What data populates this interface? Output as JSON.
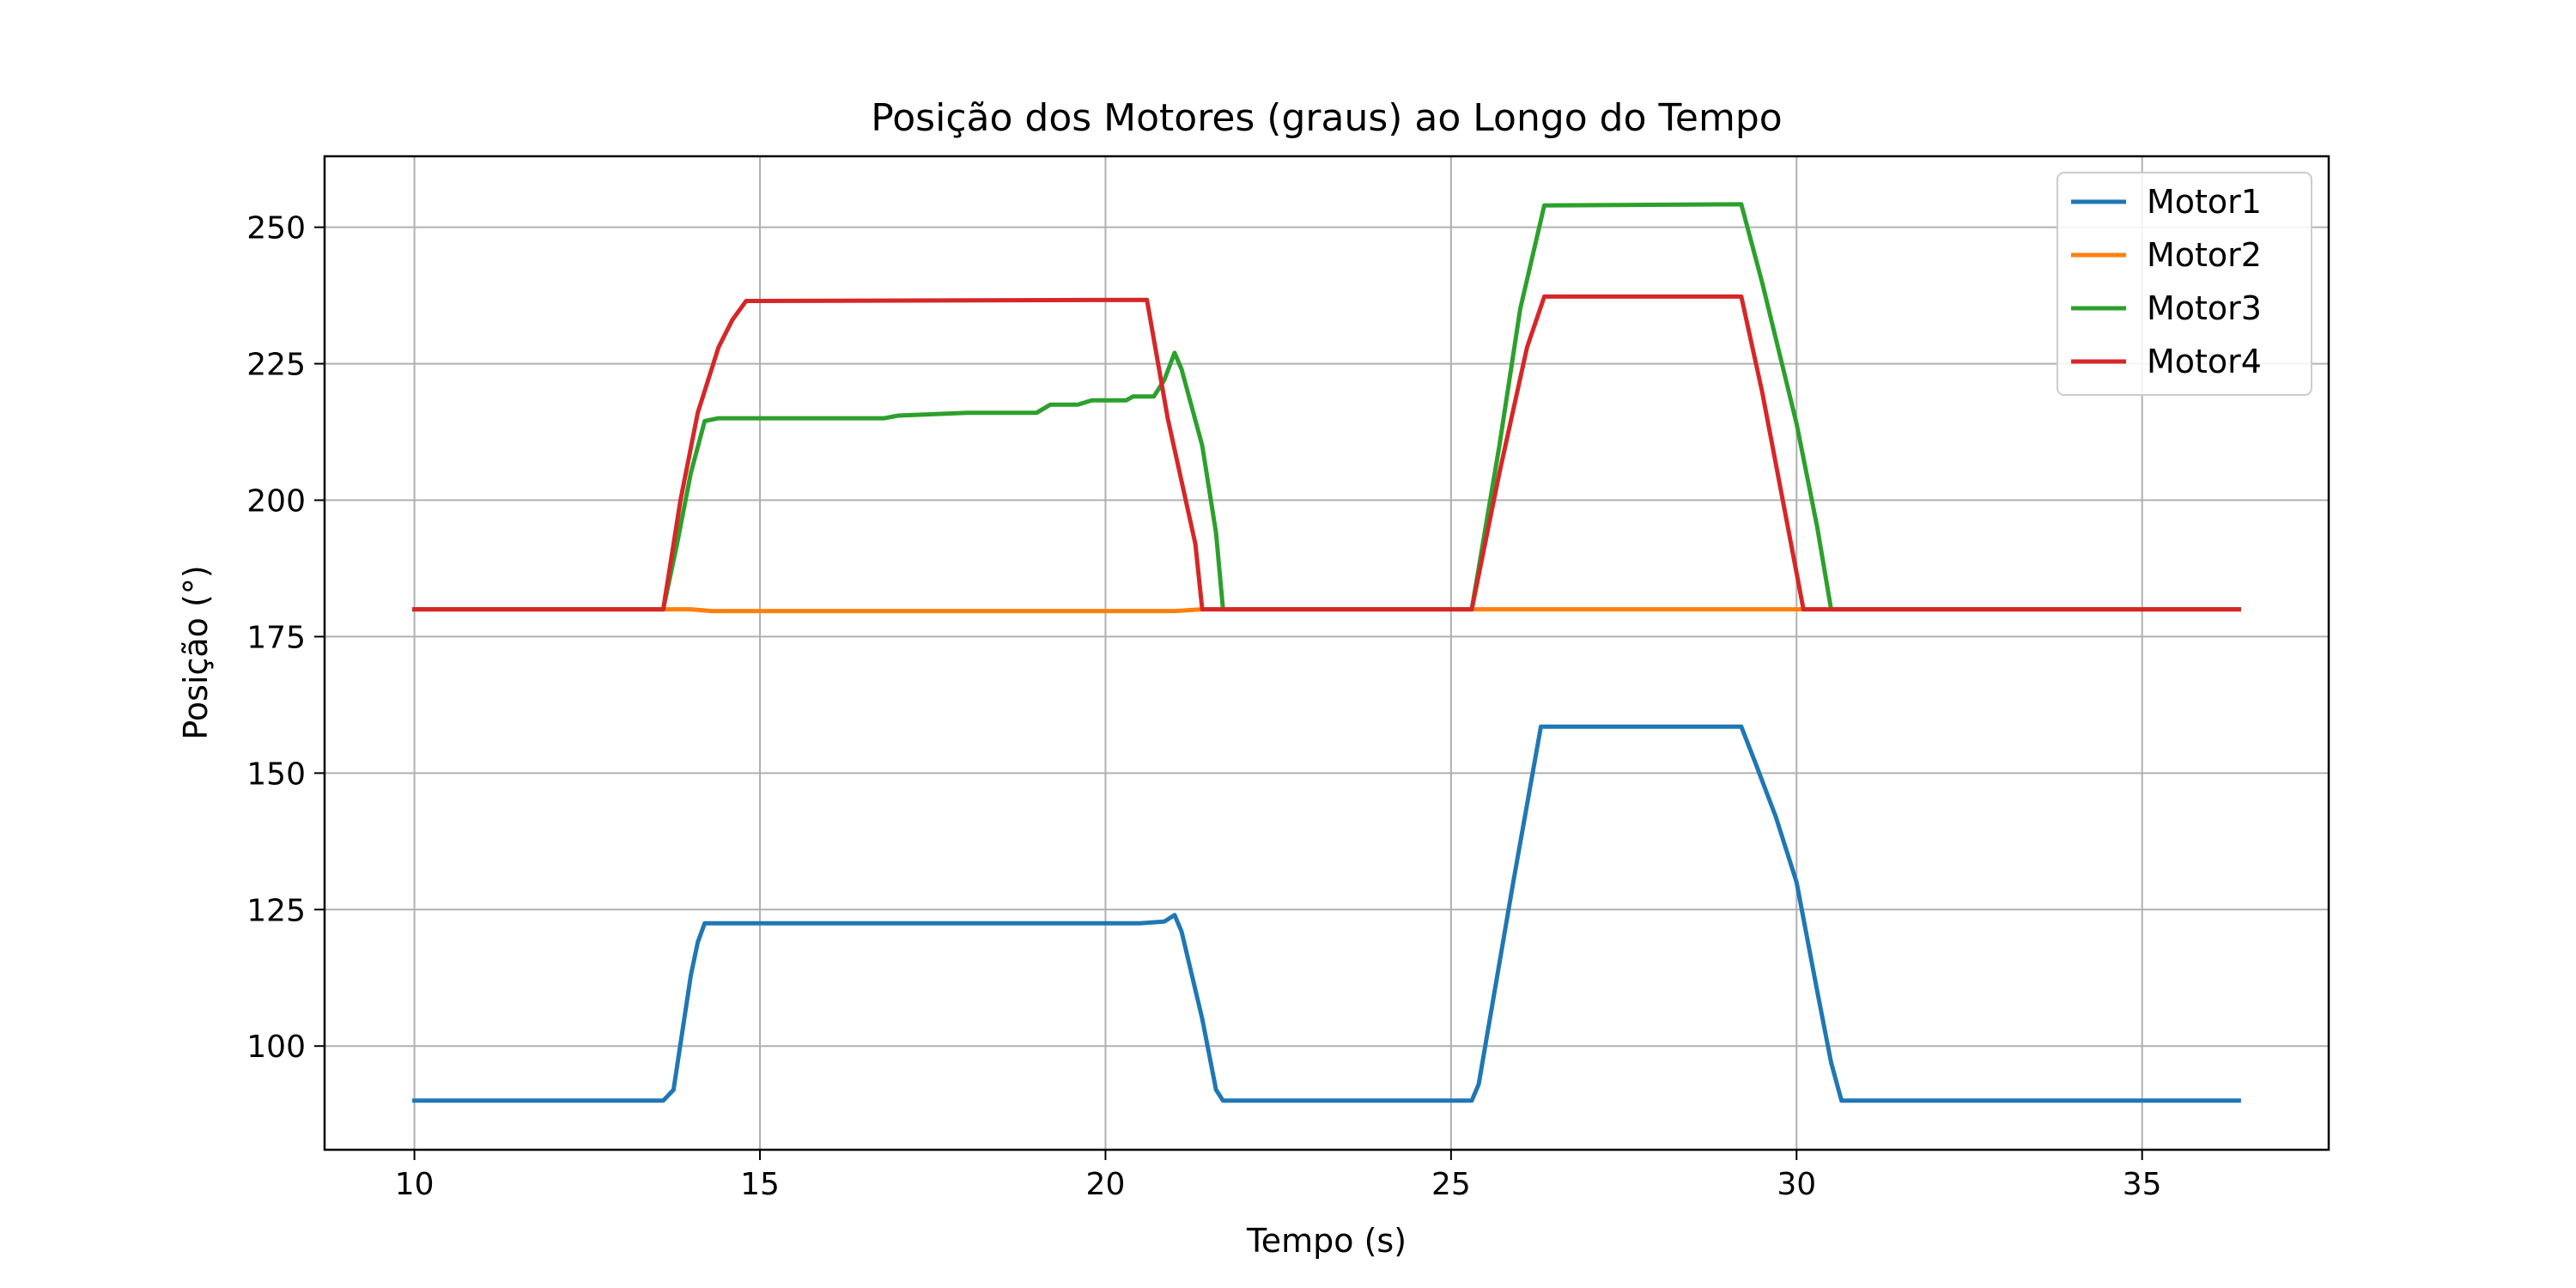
{
  "chart_data": {
    "type": "line",
    "title": "Posição dos Motores (graus) ao Longo do Tempo",
    "xlabel": "Tempo (s)",
    "ylabel": "Posição (°)",
    "xlim": [
      8.7,
      37.7
    ],
    "ylim": [
      81,
      263
    ],
    "xticks": [
      10,
      15,
      20,
      25,
      30,
      35
    ],
    "yticks": [
      100,
      125,
      150,
      175,
      200,
      225,
      250
    ],
    "grid": true,
    "legend_position": "top-right",
    "series": [
      {
        "name": "Motor1",
        "color": "#1f77b4",
        "points": [
          [
            10,
            90
          ],
          [
            13.6,
            90
          ],
          [
            13.75,
            92
          ],
          [
            14.0,
            113
          ],
          [
            14.1,
            119
          ],
          [
            14.2,
            122.5
          ],
          [
            20.5,
            122.5
          ],
          [
            20.85,
            122.8
          ],
          [
            21.0,
            124
          ],
          [
            21.1,
            121
          ],
          [
            21.4,
            105
          ],
          [
            21.6,
            92
          ],
          [
            21.7,
            90
          ],
          [
            25.3,
            90
          ],
          [
            25.4,
            93
          ],
          [
            25.9,
            130
          ],
          [
            26.3,
            158.5
          ],
          [
            29.2,
            158.5
          ],
          [
            29.4,
            152
          ],
          [
            29.7,
            142
          ],
          [
            30.0,
            130
          ],
          [
            30.3,
            110
          ],
          [
            30.5,
            97
          ],
          [
            30.65,
            90
          ],
          [
            36.4,
            90
          ]
        ]
      },
      {
        "name": "Motor2",
        "color": "#ff7f0e",
        "points": [
          [
            10,
            180
          ],
          [
            14.0,
            180
          ],
          [
            14.3,
            179.7
          ],
          [
            21.0,
            179.7
          ],
          [
            21.4,
            180
          ],
          [
            36.4,
            180
          ]
        ]
      },
      {
        "name": "Motor3",
        "color": "#2ca02c",
        "points": [
          [
            10,
            180
          ],
          [
            13.6,
            180
          ],
          [
            13.8,
            192
          ],
          [
            14.0,
            205
          ],
          [
            14.2,
            214.5
          ],
          [
            14.4,
            215
          ],
          [
            16.8,
            215
          ],
          [
            17.0,
            215.5
          ],
          [
            18.0,
            216
          ],
          [
            19.0,
            216
          ],
          [
            19.2,
            217.5
          ],
          [
            19.6,
            217.5
          ],
          [
            19.8,
            218.3
          ],
          [
            20.3,
            218.3
          ],
          [
            20.4,
            219
          ],
          [
            20.7,
            219
          ],
          [
            20.85,
            222
          ],
          [
            21.0,
            227
          ],
          [
            21.1,
            224
          ],
          [
            21.4,
            210
          ],
          [
            21.6,
            194
          ],
          [
            21.7,
            180
          ],
          [
            25.3,
            180
          ],
          [
            25.7,
            210
          ],
          [
            26.0,
            235
          ],
          [
            26.35,
            254
          ],
          [
            29.2,
            254.2
          ],
          [
            29.5,
            240
          ],
          [
            30.0,
            214
          ],
          [
            30.3,
            195
          ],
          [
            30.5,
            180
          ],
          [
            36.4,
            180
          ]
        ]
      },
      {
        "name": "Motor4",
        "color": "#d62728",
        "points": [
          [
            10,
            180
          ],
          [
            13.6,
            180
          ],
          [
            13.85,
            200
          ],
          [
            14.1,
            216
          ],
          [
            14.4,
            228
          ],
          [
            14.6,
            233
          ],
          [
            14.8,
            236.5
          ],
          [
            20.6,
            236.7
          ],
          [
            20.9,
            215
          ],
          [
            21.3,
            192
          ],
          [
            21.4,
            180
          ],
          [
            25.3,
            180
          ],
          [
            25.7,
            205
          ],
          [
            26.1,
            228
          ],
          [
            26.35,
            237.3
          ],
          [
            29.2,
            237.3
          ],
          [
            29.5,
            220
          ],
          [
            29.8,
            200
          ],
          [
            30.1,
            180
          ],
          [
            36.4,
            180
          ]
        ]
      }
    ]
  }
}
